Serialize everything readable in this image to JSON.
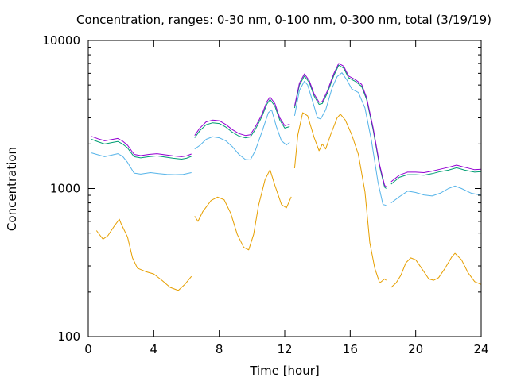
{
  "chart_data": {
    "type": "line",
    "title": "Concentration, ranges: 0-30 nm, 0-100 nm, 0-300 nm, total (3/19/19)",
    "xlabel": "Time [hour]",
    "ylabel": "Concentration",
    "xlim": [
      0,
      24
    ],
    "ylim": [
      100,
      10000
    ],
    "yscale": "log",
    "grid": false,
    "legend": "none",
    "xticks": [
      0,
      4,
      8,
      12,
      16,
      20,
      24
    ],
    "xtick_labels": [
      "0",
      "4",
      "8",
      "12",
      "16",
      "20",
      "24"
    ],
    "yticks": [
      100,
      1000,
      10000
    ],
    "ytick_labels": [
      "100",
      "1000",
      "10000"
    ],
    "series": [
      {
        "color": "#e69f00",
        "segments": [
          [
            [
              0.5,
              520
            ],
            [
              0.9,
              455
            ],
            [
              1.2,
              480
            ],
            [
              1.6,
              560
            ],
            [
              1.9,
              620
            ],
            [
              2.0,
              580
            ],
            [
              2.4,
              470
            ],
            [
              2.7,
              340
            ],
            [
              3.0,
              290
            ],
            [
              3.5,
              275
            ],
            [
              4.0,
              265
            ],
            [
              4.5,
              240
            ],
            [
              5.0,
              215
            ],
            [
              5.5,
              205
            ],
            [
              5.9,
              225
            ],
            [
              6.3,
              255
            ]
          ],
          [
            [
              6.5,
              650
            ],
            [
              6.7,
              600
            ],
            [
              7.0,
              700
            ],
            [
              7.5,
              830
            ],
            [
              7.9,
              875
            ],
            [
              8.3,
              840
            ],
            [
              8.7,
              680
            ],
            [
              9.1,
              490
            ],
            [
              9.5,
              400
            ],
            [
              9.8,
              385
            ],
            [
              10.1,
              490
            ],
            [
              10.4,
              770
            ],
            [
              10.8,
              1150
            ],
            [
              11.1,
              1340
            ],
            [
              11.4,
              1050
            ],
            [
              11.8,
              780
            ],
            [
              12.1,
              740
            ],
            [
              12.4,
              880
            ]
          ],
          [
            [
              12.6,
              1370
            ],
            [
              12.8,
              2300
            ],
            [
              13.1,
              3250
            ],
            [
              13.4,
              3100
            ],
            [
              13.8,
              2200
            ],
            [
              14.1,
              1800
            ],
            [
              14.3,
              2000
            ],
            [
              14.5,
              1850
            ],
            [
              14.8,
              2300
            ],
            [
              15.2,
              3000
            ],
            [
              15.4,
              3180
            ],
            [
              15.7,
              2900
            ],
            [
              16.1,
              2300
            ],
            [
              16.5,
              1700
            ],
            [
              16.9,
              950
            ],
            [
              17.2,
              430
            ],
            [
              17.5,
              290
            ],
            [
              17.8,
              230
            ],
            [
              18.1,
              245
            ],
            [
              18.2,
              240
            ]
          ],
          [
            [
              18.5,
              215
            ],
            [
              18.8,
              230
            ],
            [
              19.1,
              260
            ],
            [
              19.4,
              315
            ],
            [
              19.7,
              340
            ],
            [
              20.0,
              330
            ],
            [
              20.4,
              285
            ],
            [
              20.8,
              245
            ],
            [
              21.1,
              240
            ],
            [
              21.4,
              250
            ],
            [
              21.8,
              290
            ],
            [
              22.2,
              345
            ],
            [
              22.4,
              365
            ],
            [
              22.8,
              330
            ],
            [
              23.2,
              270
            ],
            [
              23.6,
              235
            ],
            [
              24.0,
              225
            ]
          ]
        ]
      },
      {
        "color": "#56b4e9",
        "segments": [
          [
            [
              0.2,
              1740
            ],
            [
              0.6,
              1690
            ],
            [
              1.0,
              1640
            ],
            [
              1.4,
              1680
            ],
            [
              1.8,
              1720
            ],
            [
              2.1,
              1650
            ],
            [
              2.4,
              1500
            ],
            [
              2.8,
              1270
            ],
            [
              3.2,
              1250
            ],
            [
              3.8,
              1280
            ],
            [
              4.3,
              1260
            ],
            [
              4.8,
              1245
            ],
            [
              5.3,
              1240
            ],
            [
              5.8,
              1245
            ],
            [
              6.3,
              1280
            ]
          ],
          [
            [
              6.5,
              1850
            ],
            [
              6.8,
              1950
            ],
            [
              7.2,
              2150
            ],
            [
              7.6,
              2240
            ],
            [
              8.0,
              2200
            ],
            [
              8.4,
              2100
            ],
            [
              8.8,
              1920
            ],
            [
              9.2,
              1700
            ],
            [
              9.6,
              1570
            ],
            [
              9.9,
              1560
            ],
            [
              10.2,
              1800
            ],
            [
              10.6,
              2400
            ],
            [
              11.0,
              3250
            ],
            [
              11.2,
              3400
            ],
            [
              11.5,
              2600
            ],
            [
              11.8,
              2100
            ],
            [
              12.1,
              1970
            ],
            [
              12.3,
              2050
            ]
          ],
          [
            [
              12.6,
              3100
            ],
            [
              12.9,
              4600
            ],
            [
              13.2,
              5300
            ],
            [
              13.4,
              5000
            ],
            [
              13.7,
              3900
            ],
            [
              14.0,
              3000
            ],
            [
              14.2,
              2950
            ],
            [
              14.5,
              3400
            ],
            [
              14.9,
              4800
            ],
            [
              15.2,
              5700
            ],
            [
              15.5,
              6050
            ],
            [
              15.8,
              5400
            ],
            [
              16.1,
              4700
            ],
            [
              16.5,
              4450
            ],
            [
              16.9,
              3500
            ],
            [
              17.3,
              2100
            ],
            [
              17.7,
              1100
            ],
            [
              18.0,
              780
            ],
            [
              18.2,
              770
            ]
          ],
          [
            [
              18.5,
              800
            ],
            [
              19.0,
              880
            ],
            [
              19.5,
              960
            ],
            [
              20.0,
              940
            ],
            [
              20.5,
              905
            ],
            [
              21.0,
              890
            ],
            [
              21.5,
              930
            ],
            [
              22.0,
              1000
            ],
            [
              22.4,
              1040
            ],
            [
              22.8,
              1000
            ],
            [
              23.4,
              930
            ],
            [
              24.0,
              900
            ]
          ]
        ]
      },
      {
        "color": "#009e73",
        "segments": [
          [
            [
              0.2,
              2150
            ],
            [
              0.6,
              2070
            ],
            [
              1.0,
              2000
            ],
            [
              1.5,
              2050
            ],
            [
              1.8,
              2080
            ],
            [
              2.1,
              2000
            ],
            [
              2.4,
              1880
            ],
            [
              2.8,
              1640
            ],
            [
              3.2,
              1610
            ],
            [
              3.7,
              1640
            ],
            [
              4.2,
              1660
            ],
            [
              4.7,
              1630
            ],
            [
              5.2,
              1600
            ],
            [
              5.7,
              1580
            ],
            [
              6.0,
              1600
            ],
            [
              6.3,
              1650
            ]
          ],
          [
            [
              6.5,
              2200
            ],
            [
              6.8,
              2450
            ],
            [
              7.2,
              2700
            ],
            [
              7.6,
              2780
            ],
            [
              8.0,
              2750
            ],
            [
              8.4,
              2600
            ],
            [
              8.8,
              2400
            ],
            [
              9.2,
              2260
            ],
            [
              9.6,
              2200
            ],
            [
              9.9,
              2230
            ],
            [
              10.2,
              2500
            ],
            [
              10.6,
              3050
            ],
            [
              10.9,
              3700
            ],
            [
              11.1,
              4000
            ],
            [
              11.4,
              3600
            ],
            [
              11.7,
              2900
            ],
            [
              12.0,
              2560
            ],
            [
              12.3,
              2620
            ]
          ],
          [
            [
              12.6,
              3500
            ],
            [
              12.9,
              5000
            ],
            [
              13.2,
              5750
            ],
            [
              13.5,
              5200
            ],
            [
              13.8,
              4200
            ],
            [
              14.1,
              3700
            ],
            [
              14.3,
              3750
            ],
            [
              14.6,
              4400
            ],
            [
              15.0,
              5800
            ],
            [
              15.3,
              6800
            ],
            [
              15.6,
              6500
            ],
            [
              15.9,
              5600
            ],
            [
              16.3,
              5300
            ],
            [
              16.7,
              4900
            ],
            [
              17.0,
              4000
            ],
            [
              17.4,
              2500
            ],
            [
              17.8,
              1400
            ],
            [
              18.1,
              1020
            ],
            [
              18.2,
              1000
            ]
          ],
          [
            [
              18.5,
              1070
            ],
            [
              19.0,
              1190
            ],
            [
              19.5,
              1240
            ],
            [
              20.0,
              1240
            ],
            [
              20.5,
              1230
            ],
            [
              21.0,
              1260
            ],
            [
              21.5,
              1300
            ],
            [
              22.0,
              1330
            ],
            [
              22.5,
              1380
            ],
            [
              23.0,
              1330
            ],
            [
              23.6,
              1290
            ],
            [
              24.0,
              1300
            ]
          ]
        ]
      },
      {
        "color": "#9400d3",
        "segments": [
          [
            [
              0.2,
              2250
            ],
            [
              0.6,
              2170
            ],
            [
              1.0,
              2100
            ],
            [
              1.5,
              2150
            ],
            [
              1.8,
              2180
            ],
            [
              2.1,
              2090
            ],
            [
              2.4,
              1960
            ],
            [
              2.8,
              1700
            ],
            [
              3.2,
              1670
            ],
            [
              3.7,
              1700
            ],
            [
              4.2,
              1720
            ],
            [
              4.7,
              1690
            ],
            [
              5.2,
              1660
            ],
            [
              5.7,
              1640
            ],
            [
              6.0,
              1660
            ],
            [
              6.3,
              1710
            ]
          ],
          [
            [
              6.5,
              2280
            ],
            [
              6.8,
              2550
            ],
            [
              7.2,
              2820
            ],
            [
              7.6,
              2900
            ],
            [
              8.0,
              2870
            ],
            [
              8.4,
              2710
            ],
            [
              8.8,
              2500
            ],
            [
              9.2,
              2350
            ],
            [
              9.6,
              2280
            ],
            [
              9.9,
              2310
            ],
            [
              10.2,
              2600
            ],
            [
              10.6,
              3150
            ],
            [
              10.9,
              3850
            ],
            [
              11.1,
              4150
            ],
            [
              11.4,
              3750
            ],
            [
              11.7,
              3000
            ],
            [
              12.0,
              2660
            ],
            [
              12.3,
              2720
            ]
          ],
          [
            [
              12.6,
              3600
            ],
            [
              12.9,
              5150
            ],
            [
              13.2,
              5950
            ],
            [
              13.5,
              5350
            ],
            [
              13.8,
              4330
            ],
            [
              14.1,
              3820
            ],
            [
              14.3,
              3870
            ],
            [
              14.6,
              4550
            ],
            [
              15.0,
              5980
            ],
            [
              15.3,
              7000
            ],
            [
              15.6,
              6700
            ],
            [
              15.9,
              5750
            ],
            [
              16.3,
              5450
            ],
            [
              16.7,
              5050
            ],
            [
              17.0,
              4120
            ],
            [
              17.4,
              2580
            ],
            [
              17.8,
              1440
            ],
            [
              18.1,
              1050
            ],
            [
              18.2,
              1030
            ]
          ],
          [
            [
              18.5,
              1110
            ],
            [
              19.0,
              1230
            ],
            [
              19.5,
              1290
            ],
            [
              20.0,
              1290
            ],
            [
              20.5,
              1280
            ],
            [
              21.0,
              1310
            ],
            [
              21.5,
              1350
            ],
            [
              22.0,
              1390
            ],
            [
              22.5,
              1440
            ],
            [
              23.0,
              1390
            ],
            [
              23.6,
              1340
            ],
            [
              24.0,
              1350
            ]
          ]
        ]
      }
    ]
  }
}
